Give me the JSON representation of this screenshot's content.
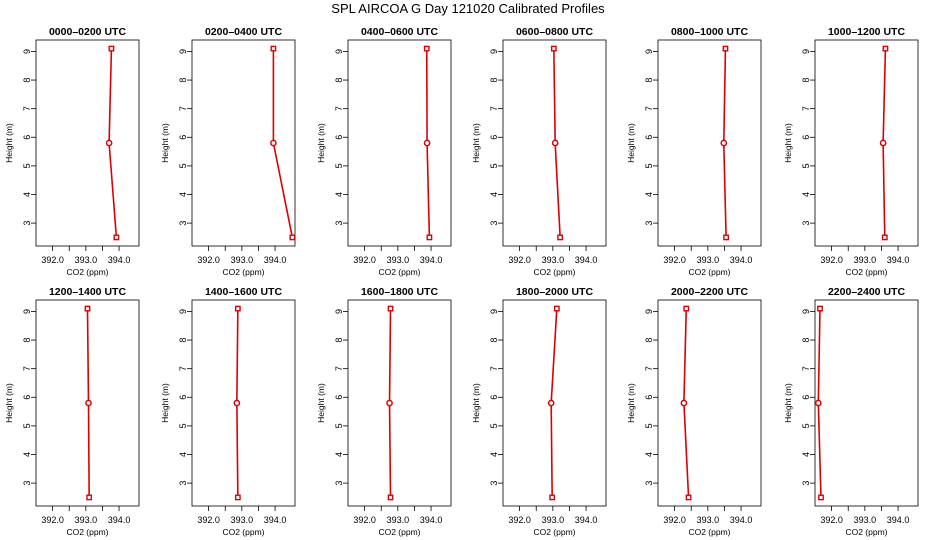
{
  "figure": {
    "title": "SPL AIRCOA G  Day 121020  Calibrated Profiles"
  },
  "colors": {
    "series": "#dd0000",
    "axis": "#000000",
    "background": "#ffffff"
  },
  "chart_data": [
    {
      "type": "line",
      "title": "0000–0200 UTC",
      "xlabel": "CO2 (ppm)",
      "ylabel": "Height (m)",
      "xlim": [
        391.5,
        394.6
      ],
      "ylim": [
        2.2,
        9.4
      ],
      "xticks": [
        "392.0",
        "393.0",
        "394.0"
      ],
      "yticks": [
        "3",
        "4",
        "5",
        "6",
        "7",
        "8",
        "9"
      ],
      "x": [
        393.92,
        393.7,
        393.77
      ],
      "y": [
        2.5,
        5.8,
        9.1
      ]
    },
    {
      "type": "line",
      "title": "0200–0400 UTC",
      "xlabel": "CO2 (ppm)",
      "ylabel": "Height (m)",
      "xlim": [
        391.5,
        394.6
      ],
      "ylim": [
        2.2,
        9.4
      ],
      "xticks": [
        "392.0",
        "393.0",
        "394.0"
      ],
      "yticks": [
        "3",
        "4",
        "5",
        "6",
        "7",
        "8",
        "9"
      ],
      "x": [
        394.52,
        393.95,
        393.95
      ],
      "y": [
        2.5,
        5.8,
        9.1
      ]
    },
    {
      "type": "line",
      "title": "0400–0600 UTC",
      "xlabel": "CO2 (ppm)",
      "ylabel": "Height (m)",
      "xlim": [
        391.5,
        394.6
      ],
      "ylim": [
        2.2,
        9.4
      ],
      "xticks": [
        "392.0",
        "393.0",
        "394.0"
      ],
      "yticks": [
        "3",
        "4",
        "5",
        "6",
        "7",
        "8",
        "9"
      ],
      "x": [
        393.95,
        393.88,
        393.87
      ],
      "y": [
        2.5,
        5.8,
        9.1
      ]
    },
    {
      "type": "line",
      "title": "0600–0800 UTC",
      "xlabel": "CO2 (ppm)",
      "ylabel": "Height (m)",
      "xlim": [
        391.5,
        394.6
      ],
      "ylim": [
        2.2,
        9.4
      ],
      "xticks": [
        "392.0",
        "393.0",
        "394.0"
      ],
      "yticks": [
        "3",
        "4",
        "5",
        "6",
        "7",
        "8",
        "9"
      ],
      "x": [
        393.22,
        393.07,
        393.03
      ],
      "y": [
        2.5,
        5.8,
        9.1
      ]
    },
    {
      "type": "line",
      "title": "0800–1000 UTC",
      "xlabel": "CO2 (ppm)",
      "ylabel": "Height (m)",
      "xlim": [
        391.5,
        394.6
      ],
      "ylim": [
        2.2,
        9.4
      ],
      "xticks": [
        "392.0",
        "393.0",
        "394.0"
      ],
      "yticks": [
        "3",
        "4",
        "5",
        "6",
        "7",
        "8",
        "9"
      ],
      "x": [
        393.55,
        393.48,
        393.53
      ],
      "y": [
        2.5,
        5.8,
        9.1
      ]
    },
    {
      "type": "line",
      "title": "1000–1200 UTC",
      "xlabel": "CO2 (ppm)",
      "ylabel": "Height (m)",
      "xlim": [
        391.5,
        394.6
      ],
      "ylim": [
        2.2,
        9.4
      ],
      "xticks": [
        "392.0",
        "393.0",
        "394.0"
      ],
      "yticks": [
        "3",
        "4",
        "5",
        "6",
        "7",
        "8",
        "9"
      ],
      "x": [
        393.6,
        393.55,
        393.62
      ],
      "y": [
        2.5,
        5.8,
        9.1
      ]
    },
    {
      "type": "line",
      "title": "1200–1400 UTC",
      "xlabel": "CO2 (ppm)",
      "ylabel": "Height (m)",
      "xlim": [
        391.5,
        394.6
      ],
      "ylim": [
        2.2,
        9.4
      ],
      "xticks": [
        "392.0",
        "393.0",
        "394.0"
      ],
      "yticks": [
        "3",
        "4",
        "5",
        "6",
        "7",
        "8",
        "9"
      ],
      "x": [
        393.1,
        393.08,
        393.05
      ],
      "y": [
        2.5,
        5.8,
        9.1
      ]
    },
    {
      "type": "line",
      "title": "1400–1600 UTC",
      "xlabel": "CO2 (ppm)",
      "ylabel": "Height (m)",
      "xlim": [
        391.5,
        394.6
      ],
      "ylim": [
        2.2,
        9.4
      ],
      "xticks": [
        "392.0",
        "393.0",
        "394.0"
      ],
      "yticks": [
        "3",
        "4",
        "5",
        "6",
        "7",
        "8",
        "9"
      ],
      "x": [
        392.88,
        392.85,
        392.88
      ],
      "y": [
        2.5,
        5.8,
        9.1
      ]
    },
    {
      "type": "line",
      "title": "1600–1800 UTC",
      "xlabel": "CO2 (ppm)",
      "ylabel": "Height (m)",
      "xlim": [
        391.5,
        394.6
      ],
      "ylim": [
        2.2,
        9.4
      ],
      "xticks": [
        "392.0",
        "393.0",
        "394.0"
      ],
      "yticks": [
        "3",
        "4",
        "5",
        "6",
        "7",
        "8",
        "9"
      ],
      "x": [
        392.78,
        392.75,
        392.78
      ],
      "y": [
        2.5,
        5.8,
        9.1
      ]
    },
    {
      "type": "line",
      "title": "1800–2000 UTC",
      "xlabel": "CO2 (ppm)",
      "ylabel": "Height (m)",
      "xlim": [
        391.5,
        394.6
      ],
      "ylim": [
        2.2,
        9.4
      ],
      "xticks": [
        "392.0",
        "393.0",
        "394.0"
      ],
      "yticks": [
        "3",
        "4",
        "5",
        "6",
        "7",
        "8",
        "9"
      ],
      "x": [
        392.98,
        392.95,
        393.12
      ],
      "y": [
        2.5,
        5.8,
        9.1
      ]
    },
    {
      "type": "line",
      "title": "2000–2200 UTC",
      "xlabel": "CO2 (ppm)",
      "ylabel": "Height (m)",
      "xlim": [
        391.5,
        394.6
      ],
      "ylim": [
        2.2,
        9.4
      ],
      "xticks": [
        "392.0",
        "393.0",
        "394.0"
      ],
      "yticks": [
        "3",
        "4",
        "5",
        "6",
        "7",
        "8",
        "9"
      ],
      "x": [
        392.42,
        392.28,
        392.35
      ],
      "y": [
        2.5,
        5.8,
        9.1
      ]
    },
    {
      "type": "line",
      "title": "2200–2400 UTC",
      "xlabel": "CO2 (ppm)",
      "ylabel": "Height (m)",
      "xlim": [
        391.5,
        394.6
      ],
      "ylim": [
        2.2,
        9.4
      ],
      "xticks": [
        "392.0",
        "393.0",
        "394.0"
      ],
      "yticks": [
        "3",
        "4",
        "5",
        "6",
        "7",
        "8",
        "9"
      ],
      "x": [
        391.68,
        391.6,
        391.65
      ],
      "y": [
        2.5,
        5.8,
        9.1
      ]
    }
  ]
}
